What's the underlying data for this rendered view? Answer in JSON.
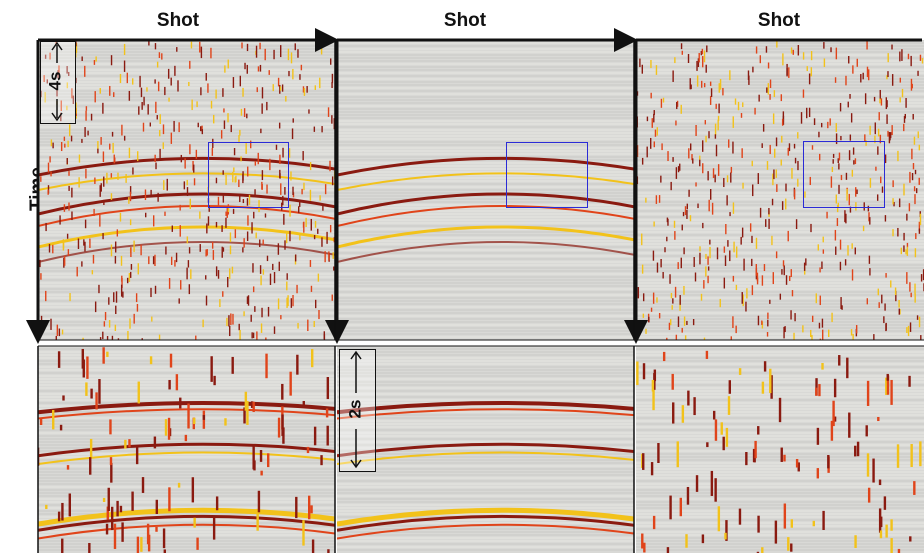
{
  "figure": {
    "column_titles": [
      "Shot",
      "Shot",
      "Shot"
    ],
    "row_label": "Time",
    "scale_top": "4s",
    "scale_bottom": "2s",
    "colors": {
      "background": "#d9d9d6",
      "event_dark": "#8a1a10",
      "event_mid": "#e0441a",
      "event_light": "#f2c21a",
      "zoom_box": "#2b2bd6",
      "axis": "#111111"
    }
  }
}
